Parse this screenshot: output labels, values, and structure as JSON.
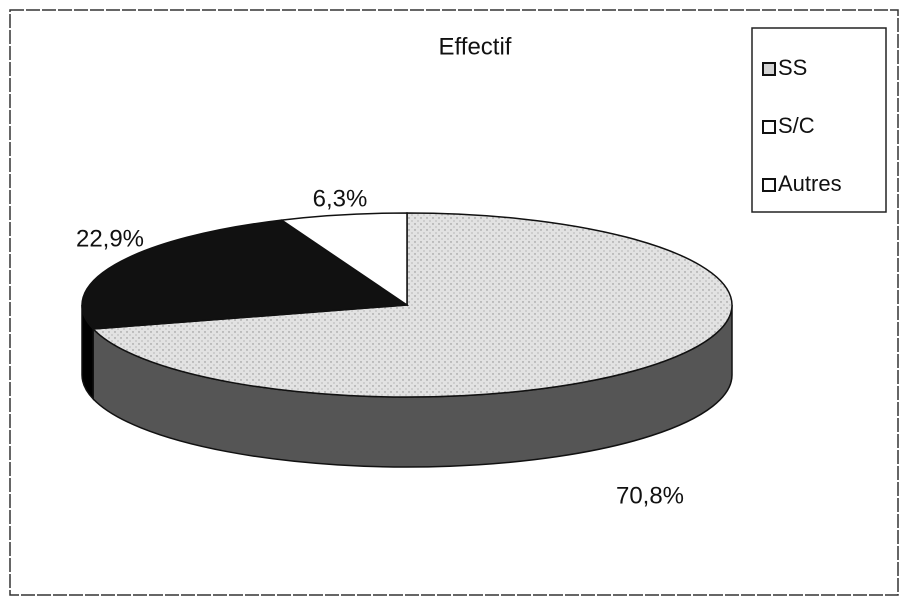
{
  "chart_data": {
    "type": "pie",
    "title": "Effectif",
    "categories": [
      "SS",
      "S/C",
      "Autres"
    ],
    "values": [
      70.8,
      22.9,
      6.3
    ],
    "value_labels": [
      "70,8%",
      "22,9%",
      "6,3%"
    ],
    "colors": [
      "#d4d4d4",
      "#111111",
      "#ffffff"
    ],
    "legend": "top-right"
  }
}
